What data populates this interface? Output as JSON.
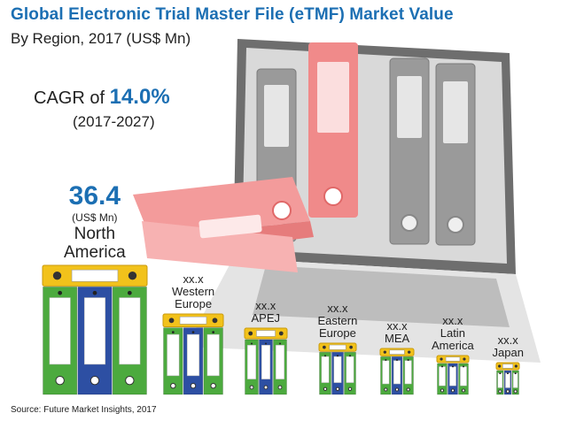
{
  "header": {
    "title": "Global Electronic Trial Master File (eTMF) Market Value",
    "subtitle": "By Region, 2017 (US$ Mn)"
  },
  "cagr": {
    "prefix": "CAGR",
    "of": "of",
    "value": "14.0%",
    "period": "(2017-2027)"
  },
  "colors": {
    "accent": "#1c6fb3",
    "binder_green": "#4caa3e",
    "binder_blue": "#2d4fa3",
    "binder_yellow": "#f2c21b"
  },
  "chart_data": {
    "type": "bar",
    "title": "Global Electronic Trial Master File (eTMF) Market Value",
    "categories": [
      "North America",
      "Western Europe",
      "APEJ",
      "Eastern Europe",
      "MEA",
      "Latin America",
      "Japan"
    ],
    "value_labels": [
      "36.4",
      "xx.x",
      "xx.x",
      "xx.x",
      "xx.x",
      "xx.x",
      "xx.x"
    ],
    "unit_label": "(US$ Mn)",
    "name_lines": [
      [
        "North",
        "America"
      ],
      [
        "Western",
        "Europe"
      ],
      [
        "APEJ"
      ],
      [
        "Eastern",
        "Europe"
      ],
      [
        "MEA"
      ],
      [
        "Latin",
        "America"
      ],
      [
        "Japan"
      ]
    ]
  },
  "footer": {
    "source": "Source: Future Market Insights, 2017"
  }
}
